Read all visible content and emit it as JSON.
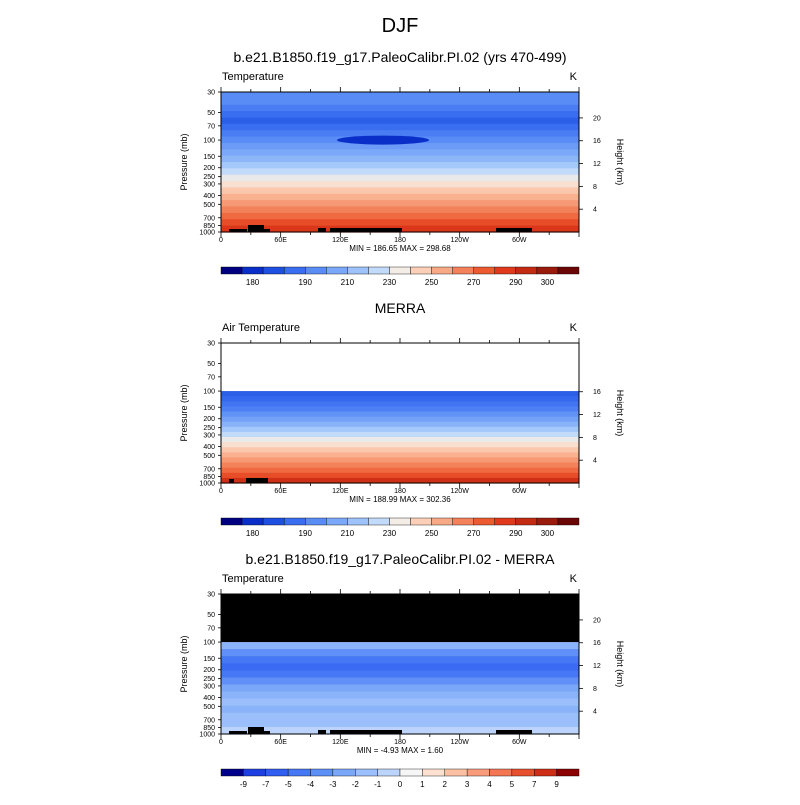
{
  "page_title": "DJF",
  "chart_data": [
    {
      "type": "heatmap",
      "title": "b.e21.B1850.f19_g17.PaleoCalibr.PI.02 (yrs 470-499)",
      "variable": "Temperature",
      "units": "K",
      "ylabel": "Pressure (mb)",
      "y2label": "Height (km)",
      "pressure_ticks": [
        "30",
        "50",
        "70",
        "100",
        "150",
        "200",
        "250",
        "300",
        "400",
        "500",
        "700",
        "850",
        "1000"
      ],
      "height_ticks": [
        "4",
        "8",
        "12",
        "16",
        "20"
      ],
      "lon_ticks": [
        "0",
        "60E",
        "120E",
        "180",
        "120W",
        "60W"
      ],
      "stats": "MIN = 186.65  MAX = 298.68",
      "colorbar_labels": [
        "180",
        "190",
        "210",
        "230",
        "250",
        "270",
        "290",
        "300"
      ],
      "bands_top_to_bottom": [
        210,
        210,
        205,
        200,
        195,
        200,
        205,
        210,
        215,
        220,
        225,
        232,
        240,
        248,
        255,
        262,
        268,
        274,
        280,
        286,
        292,
        296
      ],
      "top_pressure_mb": 30
    },
    {
      "type": "heatmap",
      "title": "MERRA",
      "variable": "Air Temperature",
      "units": "K",
      "ylabel": "Pressure (mb)",
      "y2label": "Height (km)",
      "pressure_ticks": [
        "30",
        "50",
        "70",
        "100",
        "150",
        "200",
        "250",
        "300",
        "400",
        "500",
        "700",
        "850",
        "1000"
      ],
      "height_ticks": [
        "4",
        "8",
        "12",
        "16"
      ],
      "lon_ticks": [
        "0",
        "60E",
        "120E",
        "180",
        "120W",
        "60W"
      ],
      "stats": "MIN = 188.99  MAX = 302.36",
      "colorbar_labels": [
        "180",
        "190",
        "210",
        "230",
        "250",
        "270",
        "290",
        "300"
      ],
      "bands_top_to_bottom": [
        195,
        198,
        202,
        206,
        212,
        218,
        224,
        232,
        240,
        248,
        255,
        262,
        268,
        274,
        280,
        286,
        292,
        298
      ],
      "top_pressure_mb": 100
    },
    {
      "type": "heatmap",
      "title": "b.e21.B1850.f19_g17.PaleoCalibr.PI.02 - MERRA",
      "variable": "Temperature",
      "units": "K",
      "ylabel": "Pressure (mb)",
      "y2label": "Height (km)",
      "pressure_ticks": [
        "30",
        "50",
        "70",
        "100",
        "150",
        "200",
        "250",
        "300",
        "400",
        "500",
        "700",
        "850",
        "1000"
      ],
      "height_ticks": [
        "4",
        "8",
        "12",
        "16",
        "20"
      ],
      "lon_ticks": [
        "0",
        "60E",
        "120E",
        "180",
        "120W",
        "60W"
      ],
      "stats": "MIN = -4.93  MAX =   1.60",
      "colorbar_labels": [
        "-9",
        "-7",
        "-5",
        "-4",
        "-3",
        "-2",
        "-1",
        "0",
        "1",
        "2",
        "3",
        "4",
        "5",
        "7",
        "9"
      ],
      "bands_top_to_bottom": [
        -1.5,
        -2.5,
        -3,
        -3.5,
        -3,
        -2.5,
        -2,
        -1.5,
        -1,
        -1.5,
        -1,
        -1,
        -0.5
      ],
      "top_pressure_mb": 100
    }
  ],
  "colorbar_colors": [
    "#000080",
    "#0a2fc8",
    "#1d4fe0",
    "#3a6ef0",
    "#5a8cf6",
    "#7ba8f8",
    "#9ec3fa",
    "#c3dbfb",
    "#f4ede6",
    "#fcd0b8",
    "#f8a985",
    "#f3825a",
    "#ec5a30",
    "#e0391b",
    "#c22a12",
    "#9a1a0c",
    "#6b0606"
  ],
  "diff_colorbar_colors": [
    "#00008b",
    "#1e40e0",
    "#2f5ef0",
    "#4677f5",
    "#5d90f7",
    "#7aa7f8",
    "#9bbffa",
    "#bcd4fb",
    "#f6f6f6",
    "#fde0cf",
    "#fbc0a4",
    "#f89c7c",
    "#f27752",
    "#e6502f",
    "#cf2e16",
    "#8b0000"
  ]
}
